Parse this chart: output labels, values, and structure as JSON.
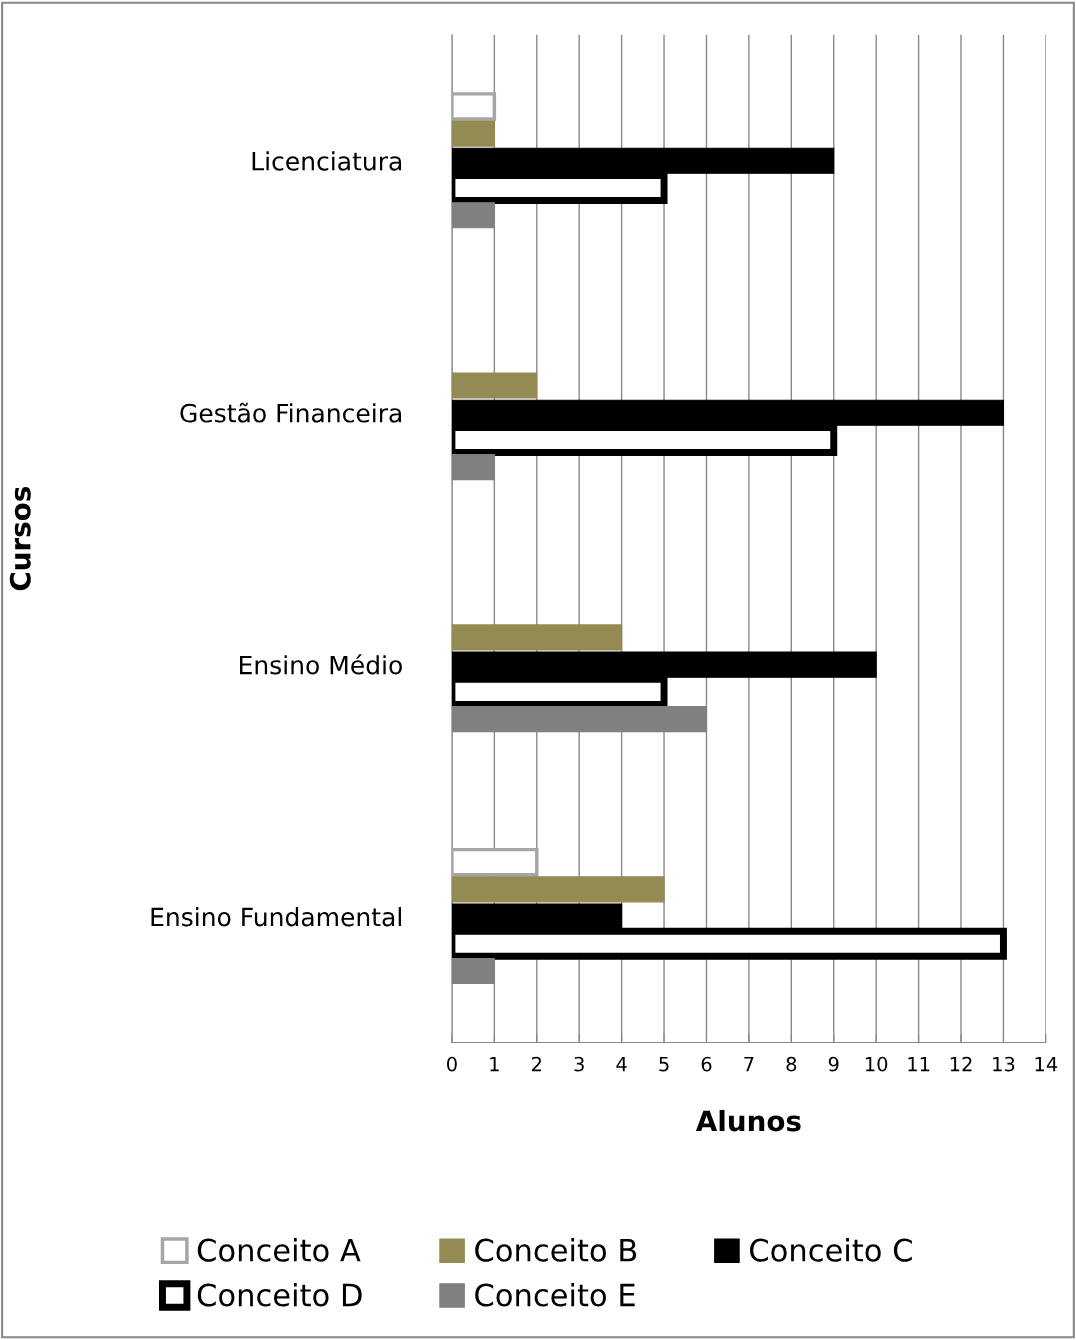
{
  "chart_data": {
    "type": "bar",
    "orientation": "horizontal",
    "xlabel": "Alunos",
    "ylabel": "Cursos",
    "categories": [
      "Licenciatura",
      "Gestão Financeira",
      "Ensino Médio",
      "Ensino Fundamental"
    ],
    "series": [
      {
        "name": "Conceito A",
        "color": "#ffffff",
        "values": [
          1,
          null,
          null,
          2
        ]
      },
      {
        "name": "Conceito B",
        "color": "#948a54",
        "values": [
          1,
          2,
          4,
          5
        ]
      },
      {
        "name": "Conceito C",
        "color": "#000000",
        "values": [
          9,
          13,
          10,
          4
        ]
      },
      {
        "name": "Conceito D",
        "color": "#ffffff",
        "values": [
          5,
          9,
          5,
          13
        ]
      },
      {
        "name": "Conceito E",
        "color": "#808080",
        "values": [
          1,
          1,
          6,
          1
        ]
      }
    ],
    "xlim": [
      0,
      14
    ],
    "xticks": [
      0,
      1,
      2,
      3,
      4,
      5,
      6,
      7,
      8,
      9,
      10,
      11,
      12,
      13,
      14
    ],
    "grid": "x",
    "legend": "bottom"
  }
}
